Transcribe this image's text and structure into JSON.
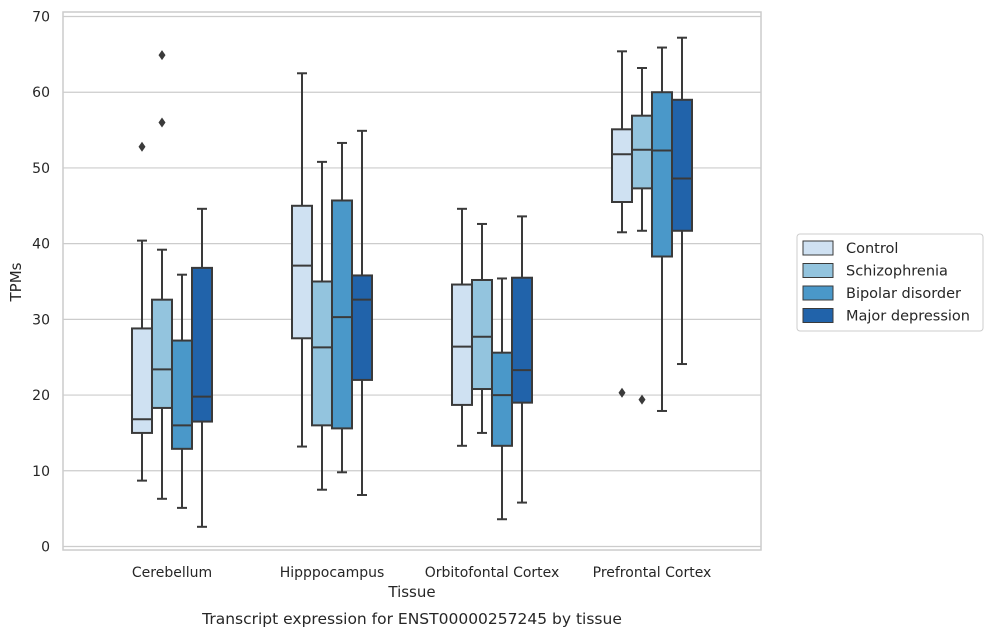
{
  "chart_data": {
    "type": "boxplot",
    "xlabel": "Tissue",
    "ylabel": "TPMs",
    "caption": "Transcript expression for ENST00000257245 by tissue",
    "ylim": [
      -0.5,
      70.5
    ],
    "yticks": [
      "0",
      "10",
      "20",
      "30",
      "40",
      "50",
      "60",
      "70"
    ],
    "grid": "horizontal",
    "legend_position": "right",
    "categories": [
      "Cerebellum",
      "Hipppocampus",
      "Orbitofontal Cortex",
      "Prefrontal Cortex"
    ],
    "series": [
      {
        "name": "Control",
        "color": "#cfe1f2",
        "boxes": [
          {
            "whislo": 8.7,
            "q1": 15.0,
            "med": 16.8,
            "q3": 28.8,
            "whishi": 40.4,
            "fliers": [
              52.8
            ]
          },
          {
            "whislo": 13.2,
            "q1": 27.5,
            "med": 37.1,
            "q3": 45.0,
            "whishi": 62.5,
            "fliers": []
          },
          {
            "whislo": 13.3,
            "q1": 18.7,
            "med": 26.4,
            "q3": 34.6,
            "whishi": 44.6,
            "fliers": []
          },
          {
            "whislo": 41.5,
            "q1": 45.5,
            "med": 51.8,
            "q3": 55.1,
            "whishi": 65.4,
            "fliers": [
              20.3
            ]
          }
        ]
      },
      {
        "name": "Schizophrenia",
        "color": "#93c4de",
        "boxes": [
          {
            "whislo": 6.3,
            "q1": 18.3,
            "med": 23.4,
            "q3": 32.6,
            "whishi": 39.2,
            "fliers": [
              56.0,
              64.9
            ]
          },
          {
            "whislo": 7.5,
            "q1": 16.0,
            "med": 26.3,
            "q3": 35.0,
            "whishi": 50.8,
            "fliers": []
          },
          {
            "whislo": 15.0,
            "q1": 20.8,
            "med": 27.7,
            "q3": 35.2,
            "whishi": 42.6,
            "fliers": []
          },
          {
            "whislo": 41.7,
            "q1": 47.3,
            "med": 52.4,
            "q3": 56.9,
            "whishi": 63.2,
            "fliers": [
              19.4
            ]
          }
        ]
      },
      {
        "name": "Bipolar disorder",
        "color": "#4a98c9",
        "boxes": [
          {
            "whislo": 5.1,
            "q1": 12.9,
            "med": 16.0,
            "q3": 27.2,
            "whishi": 35.9,
            "fliers": []
          },
          {
            "whislo": 9.8,
            "q1": 15.6,
            "med": 30.3,
            "q3": 45.7,
            "whishi": 53.3,
            "fliers": []
          },
          {
            "whislo": 3.6,
            "q1": 13.3,
            "med": 20.0,
            "q3": 25.6,
            "whishi": 35.4,
            "fliers": []
          },
          {
            "whislo": 17.9,
            "q1": 38.3,
            "med": 52.3,
            "q3": 60.0,
            "whishi": 65.9,
            "fliers": []
          }
        ]
      },
      {
        "name": "Major depression",
        "color": "#2163aa",
        "boxes": [
          {
            "whislo": 2.6,
            "q1": 16.5,
            "med": 19.8,
            "q3": 36.8,
            "whishi": 44.6,
            "fliers": []
          },
          {
            "whislo": 6.8,
            "q1": 22.0,
            "med": 32.6,
            "q3": 35.8,
            "whishi": 54.9,
            "fliers": []
          },
          {
            "whislo": 5.8,
            "q1": 19.0,
            "med": 23.3,
            "q3": 35.5,
            "whishi": 43.6,
            "fliers": []
          },
          {
            "whislo": 24.1,
            "q1": 41.7,
            "med": 48.6,
            "q3": 59.0,
            "whishi": 67.2,
            "fliers": []
          }
        ]
      }
    ]
  }
}
